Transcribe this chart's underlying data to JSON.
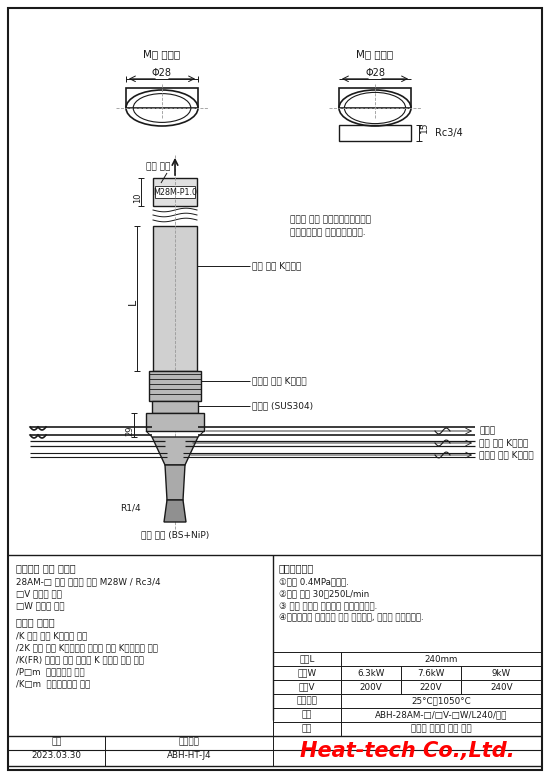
{
  "bg_color": "#ffffff",
  "line_color": "#1a1a1a",
  "center_color": "#999999",
  "gray1": "#d0d0d0",
  "gray2": "#b8b8b8",
  "gray3": "#e0e0e0",
  "label_left_M": "M형 외나사",
  "label_right_M": "M형 내나사",
  "phi28": "Φ28",
  "label_hot_air_outlet": "열풍 출구",
  "label_Rc34": "Rc3/4",
  "label_M28M": "M28M-P1.0",
  "label_15": "15",
  "label_10": "10",
  "label_L": "L",
  "label_29": "29",
  "label_R14": "R1/4",
  "label_note1": "절단의 나사 포함이음재쥐장식은",
  "label_note2": "특별주문에서 제작하걌습니다.",
  "label_hot_air_thermo": "열풍 온도 K열전대",
  "label_heater_thermo": "발열체 온도 K열전대",
  "label_metal_pipe": "금속관 (SUS304)",
  "label_power_line": "전원선",
  "label_hot_air_thermo2": "열풍 온도 K열전대",
  "label_heater_thermo2": "발열체 온도 K열전대",
  "label_gas_inlet": "기체 입구 (BS+NiP)",
  "section_order": "【주문시 사양 지정】",
  "order_line1": "28AM-□ 선단 형상의 지정 M28W / Rc3/4",
  "order_line2": "□V 전압의 지정",
  "order_line3": "□W 전력의 지정",
  "section_option": "【옵션 대응】",
  "opt_line1": "/K 열풍 온도 K열전대 추가",
  "opt_line2": "/2K 열풍 온도 K열전대와 발열체 온도 K열전대의 추가",
  "opt_line3": "/K(FR) 유연한 로봇 케이블 K 열전대 사양 추가",
  "opt_line4": "/P□m  전원선장이 지정",
  "opt_line5": "/K□m  열전대선장이 지정",
  "section_caution": "【주의시항】",
  "caut_line1": "①내압 0.4MPa입니다.",
  "caut_line2": "②추청 유량 30～250L/min",
  "caut_line3": "③ 공급 기체는 드레인을 제거하십시오.",
  "caut_line4": "④저온기체를 공급하지 않고 가열하면, 히터는 소손합니다.",
  "spec_kanL": "관장L",
  "spec_kanL_val": "240mm",
  "spec_power": "전력W",
  "spec_p1": "6.3kW",
  "spec_p2": "7.6kW",
  "spec_p3": "9kW",
  "spec_volt": "전압V",
  "spec_v1": "200V",
  "spec_v2": "220V",
  "spec_v3": "240V",
  "spec_temp": "열풍온도",
  "spec_temp_val": "25°C～1050°C",
  "spec_model": "형식",
  "spec_model_val": "ABH-28AM-□/□V-□W/L240/옵션",
  "spec_name": "품명",
  "spec_name_val": "고온용 고출력 열풍 히터",
  "date_label": "날짜",
  "date_val": "2023.03.30",
  "drawing_label": "도면번호",
  "drawing_val": "ABH-HT-J4",
  "company": "Heat-tech Co.,Ltd."
}
